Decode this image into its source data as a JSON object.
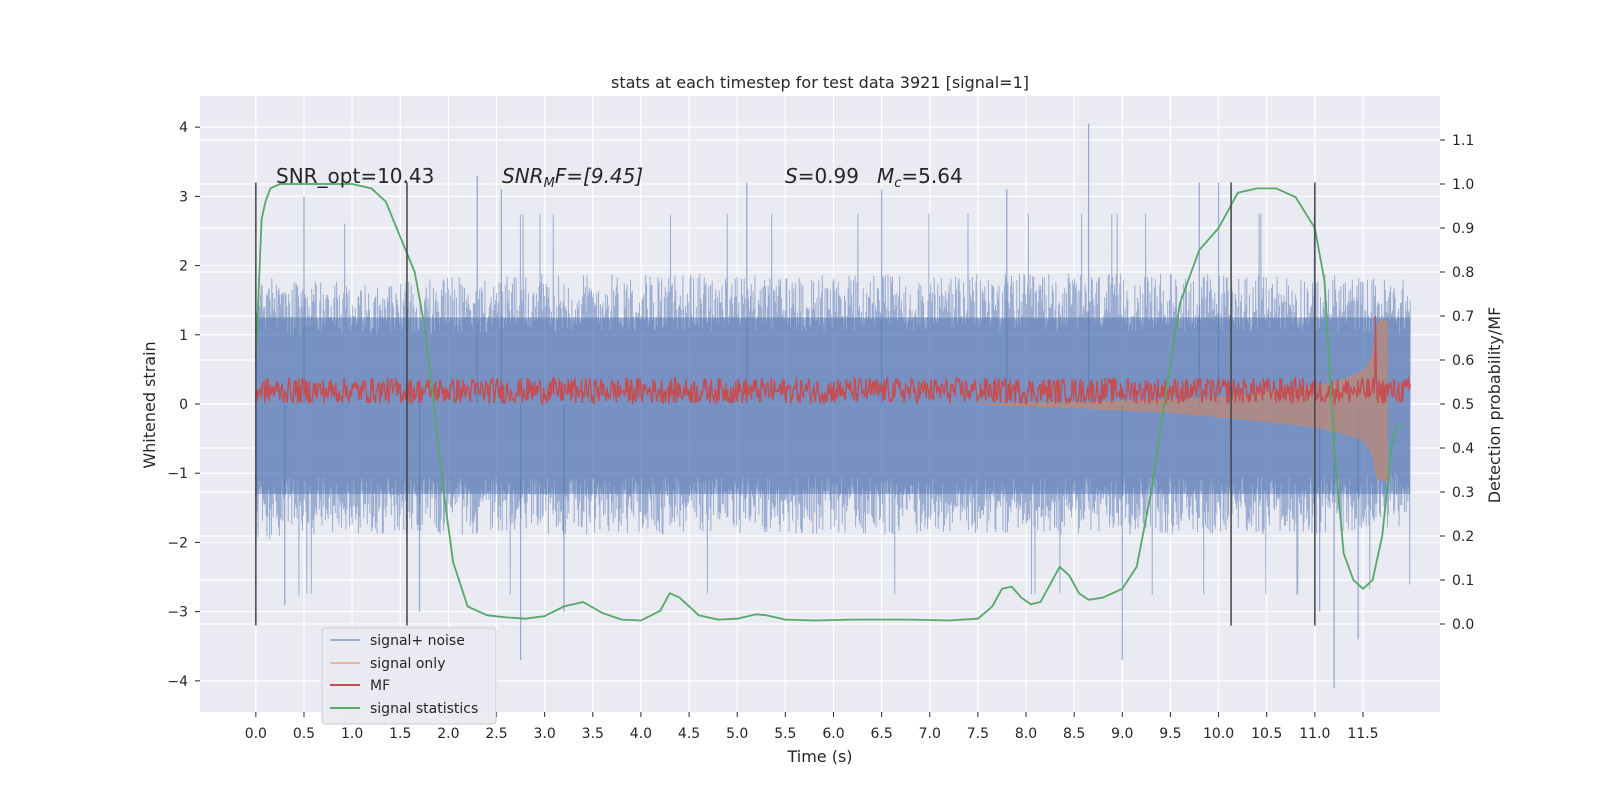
{
  "chart_data": {
    "type": "line",
    "title": "stats at each timestep for test data 3921 [signal=1]",
    "xlabel": "Time (s)",
    "ylabel": "Whitened strain",
    "ylabel_right": "Detection probability/MF",
    "xlim": [
      -0.58,
      12.3
    ],
    "ylim": [
      -4.45,
      4.45
    ],
    "ylim_right": [
      -0.2,
      1.2
    ],
    "x_ticks": [
      "0.0",
      "0.5",
      "1.0",
      "1.5",
      "2.0",
      "2.5",
      "3.0",
      "3.5",
      "4.0",
      "4.5",
      "5.0",
      "5.5",
      "6.0",
      "6.5",
      "7.0",
      "7.5",
      "8.0",
      "8.5",
      "9.0",
      "9.5",
      "10.0",
      "10.5",
      "11.0",
      "11.5"
    ],
    "x_tick_values": [
      0,
      0.5,
      1,
      1.5,
      2,
      2.5,
      3,
      3.5,
      4,
      4.5,
      5,
      5.5,
      6,
      6.5,
      7,
      7.5,
      8,
      8.5,
      9,
      9.5,
      10,
      10.5,
      11,
      11.5
    ],
    "y_ticks": [
      "−4",
      "−3",
      "−2",
      "−1",
      "0",
      "1",
      "2",
      "3",
      "4"
    ],
    "y_tick_values": [
      -4,
      -3,
      -2,
      -1,
      0,
      1,
      2,
      3,
      4
    ],
    "y_ticks_right": [
      "0.0",
      "0.1",
      "0.2",
      "0.3",
      "0.4",
      "0.5",
      "0.6",
      "0.7",
      "0.8",
      "0.9",
      "1.0",
      "1.1"
    ],
    "y_tick_values_right": [
      0,
      0.1,
      0.2,
      0.3,
      0.4,
      0.5,
      0.6,
      0.7,
      0.8,
      0.9,
      1.0,
      1.1
    ],
    "grid": true,
    "legend_position": "lower-left",
    "annotations": {
      "snr_opt": "SNR_opt=10.43",
      "snr_mf_base": "SNR",
      "snr_mf_sub": "M",
      "snr_mf_rest": "F=[9.45]",
      "s_var": "S",
      "s_rest": "=0.99",
      "mc_var": "M",
      "mc_sub": "c",
      "mc_rest": "=5.64"
    },
    "vertical_lines_x": [
      0.0,
      1.57,
      10.13,
      11.0
    ],
    "series": [
      {
        "name": "signal+ noise",
        "color": "#4c72b0",
        "x_range": [
          0,
          11.99
        ],
        "envelope_upper": [
          [
            0.0,
            1.9
          ],
          [
            0.5,
            1.8
          ],
          [
            1.0,
            1.8
          ],
          [
            1.5,
            1.8
          ],
          [
            2.0,
            1.85
          ],
          [
            3.0,
            1.9
          ],
          [
            4.0,
            1.9
          ],
          [
            5.0,
            1.9
          ],
          [
            6.0,
            1.9
          ],
          [
            7.0,
            1.9
          ],
          [
            8.0,
            1.9
          ],
          [
            9.0,
            1.9
          ],
          [
            10.0,
            1.9
          ],
          [
            11.0,
            1.9
          ],
          [
            11.99,
            1.8
          ]
        ],
        "envelope_lower": [
          [
            0.0,
            -2.0
          ],
          [
            0.5,
            -1.9
          ],
          [
            1.0,
            -1.9
          ],
          [
            1.5,
            -1.9
          ],
          [
            2.0,
            -1.9
          ],
          [
            3.0,
            -1.9
          ],
          [
            4.0,
            -1.9
          ],
          [
            5.0,
            -1.9
          ],
          [
            6.0,
            -1.9
          ],
          [
            7.0,
            -1.9
          ],
          [
            8.0,
            -1.9
          ],
          [
            9.0,
            -1.9
          ],
          [
            10.0,
            -1.9
          ],
          [
            11.0,
            -1.9
          ],
          [
            11.99,
            -1.8
          ]
        ],
        "peaks": [
          [
            0.5,
            3.0
          ],
          [
            2.3,
            3.3
          ],
          [
            2.55,
            3.1
          ],
          [
            2.75,
            -3.7
          ],
          [
            7.8,
            3.1
          ],
          [
            8.65,
            4.05
          ],
          [
            9.0,
            -3.7
          ],
          [
            10.0,
            3.2
          ],
          [
            11.2,
            -4.1
          ],
          [
            11.05,
            -3.0
          ],
          [
            11.45,
            -3.4
          ],
          [
            0.3,
            -2.9
          ],
          [
            1.7,
            -3.0
          ],
          [
            3.2,
            -3.0
          ],
          [
            5.1,
            3.2
          ],
          [
            6.5,
            3.1
          ],
          [
            9.8,
            3.2
          ]
        ]
      },
      {
        "name": "signal only",
        "color": "#dd8452",
        "x_range": [
          7.5,
          11.75
        ],
        "upper": [
          [
            7.5,
            0.0
          ],
          [
            8.5,
            0.02
          ],
          [
            9.5,
            0.06
          ],
          [
            10.0,
            0.1
          ],
          [
            10.5,
            0.16
          ],
          [
            11.0,
            0.25
          ],
          [
            11.3,
            0.35
          ],
          [
            11.5,
            0.48
          ],
          [
            11.6,
            0.65
          ],
          [
            11.65,
            1.2
          ]
        ],
        "lower": [
          [
            7.5,
            0.0
          ],
          [
            8.5,
            -0.05
          ],
          [
            9.5,
            -0.12
          ],
          [
            10.0,
            -0.18
          ],
          [
            10.5,
            -0.25
          ],
          [
            11.0,
            -0.33
          ],
          [
            11.3,
            -0.42
          ],
          [
            11.5,
            -0.52
          ],
          [
            11.6,
            -0.7
          ],
          [
            11.65,
            -1.1
          ]
        ]
      },
      {
        "name": "MF",
        "color": "#c44e52",
        "x_range": [
          0,
          11.99
        ],
        "base_right": 0.53,
        "noise_amp_right": 0.03,
        "spike": [
          11.63,
          0.7
        ]
      },
      {
        "name": "signal statistics",
        "color": "#55a868",
        "x": [
          0.0,
          0.06,
          0.1,
          0.15,
          0.25,
          0.5,
          1.0,
          1.2,
          1.35,
          1.5,
          1.65,
          1.75,
          1.85,
          1.95,
          2.05,
          2.2,
          2.4,
          2.6,
          2.8,
          3.0,
          3.2,
          3.4,
          3.6,
          3.8,
          4.0,
          4.2,
          4.3,
          4.4,
          4.6,
          4.8,
          5.0,
          5.2,
          5.3,
          5.5,
          5.8,
          6.2,
          6.5,
          6.8,
          7.2,
          7.5,
          7.65,
          7.75,
          7.85,
          7.95,
          8.05,
          8.15,
          8.25,
          8.35,
          8.45,
          8.55,
          8.65,
          8.8,
          9.0,
          9.15,
          9.3,
          9.45,
          9.6,
          9.8,
          10.0,
          10.2,
          10.4,
          10.6,
          10.8,
          11.0,
          11.1,
          11.2,
          11.3,
          11.4,
          11.5,
          11.6,
          11.7,
          11.8,
          11.85,
          11.93
        ],
        "y": [
          0.6,
          0.92,
          0.96,
          0.99,
          1.0,
          1.0,
          1.0,
          0.99,
          0.96,
          0.88,
          0.8,
          0.68,
          0.5,
          0.3,
          0.14,
          0.04,
          0.02,
          0.015,
          0.012,
          0.018,
          0.04,
          0.05,
          0.025,
          0.01,
          0.008,
          0.03,
          0.07,
          0.06,
          0.02,
          0.01,
          0.012,
          0.022,
          0.02,
          0.01,
          0.008,
          0.01,
          0.01,
          0.01,
          0.008,
          0.012,
          0.04,
          0.08,
          0.085,
          0.06,
          0.045,
          0.05,
          0.09,
          0.13,
          0.11,
          0.07,
          0.055,
          0.06,
          0.08,
          0.13,
          0.3,
          0.52,
          0.73,
          0.85,
          0.9,
          0.98,
          0.99,
          0.99,
          0.97,
          0.9,
          0.78,
          0.4,
          0.16,
          0.1,
          0.08,
          0.1,
          0.2,
          0.41,
          0.45,
          0.45
        ]
      }
    ]
  }
}
